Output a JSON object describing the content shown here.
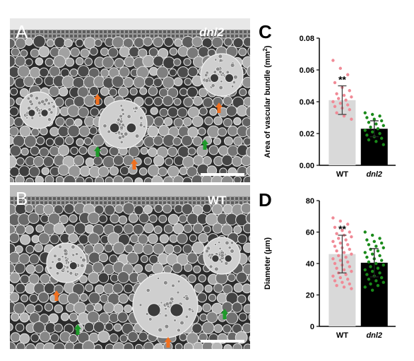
{
  "panels": {
    "a": {
      "letter": "A",
      "genotype": "dnl2"
    },
    "b": {
      "letter": "B",
      "genotype": "WT"
    }
  },
  "colors": {
    "wt_bar": "#d9d9d9",
    "wt_points": "#f08a96",
    "mutant_bar": "#000000",
    "mutant_points": "#1a8a1a",
    "orange_arrow": "#f07020",
    "green_arrow": "#1e9a2a",
    "scale_bar": "#ffffff"
  },
  "chart_data": [
    {
      "type": "bar",
      "panel": "C",
      "ylabel": "Area of vascular bundle (mm",
      "ylabel_sup": "2",
      "ylabel_close": ")",
      "categories": [
        "WT",
        "dnl2"
      ],
      "values": [
        0.041,
        0.023
      ],
      "sd": [
        0.009,
        0.005
      ],
      "significance": [
        "**",
        ""
      ],
      "ylim": [
        0,
        0.08
      ],
      "yticks": [
        "0.00",
        "0.02",
        "0.04",
        "0.06",
        "0.08"
      ],
      "ytick_values": [
        0,
        0.02,
        0.04,
        0.06,
        0.08
      ],
      "points": [
        [
          0.066,
          0.061,
          0.057,
          0.052,
          0.049,
          0.047,
          0.045,
          0.044,
          0.043,
          0.042,
          0.041,
          0.04,
          0.039,
          0.038,
          0.037,
          0.036,
          0.035,
          0.033,
          0.031,
          0.029
        ],
        [
          0.033,
          0.032,
          0.031,
          0.03,
          0.029,
          0.028,
          0.027,
          0.026,
          0.025,
          0.024,
          0.023,
          0.022,
          0.021,
          0.02,
          0.019,
          0.018,
          0.017,
          0.016,
          0.015,
          0.013
        ]
      ]
    },
    {
      "type": "bar",
      "panel": "D",
      "ylabel": "Diameter (μm)",
      "categories": [
        "WT",
        "dnl2"
      ],
      "values": [
        46,
        40.5
      ],
      "sd": [
        12,
        9
      ],
      "significance": [
        "**",
        ""
      ],
      "ylim": [
        0,
        80
      ],
      "yticks": [
        "0",
        "20",
        "40",
        "60",
        "80"
      ],
      "ytick_values": [
        0,
        20,
        40,
        60,
        80
      ],
      "points": [
        [
          69,
          67,
          65,
          63,
          61,
          60,
          59,
          58,
          57,
          56,
          55,
          54,
          53,
          52,
          51,
          50,
          49,
          48,
          47,
          46,
          45,
          44,
          43,
          42,
          41,
          40,
          39,
          38,
          37,
          36,
          35,
          34,
          33,
          32,
          31,
          30,
          29,
          28,
          27,
          26,
          25,
          24
        ],
        [
          60,
          58,
          56,
          55,
          54,
          53,
          52,
          51,
          50,
          49,
          48,
          47,
          46,
          45,
          44,
          43,
          42,
          41,
          40,
          39,
          38,
          37,
          36,
          35,
          34,
          33,
          32,
          31,
          30,
          29,
          28,
          27,
          26,
          25,
          23
        ]
      ]
    }
  ]
}
